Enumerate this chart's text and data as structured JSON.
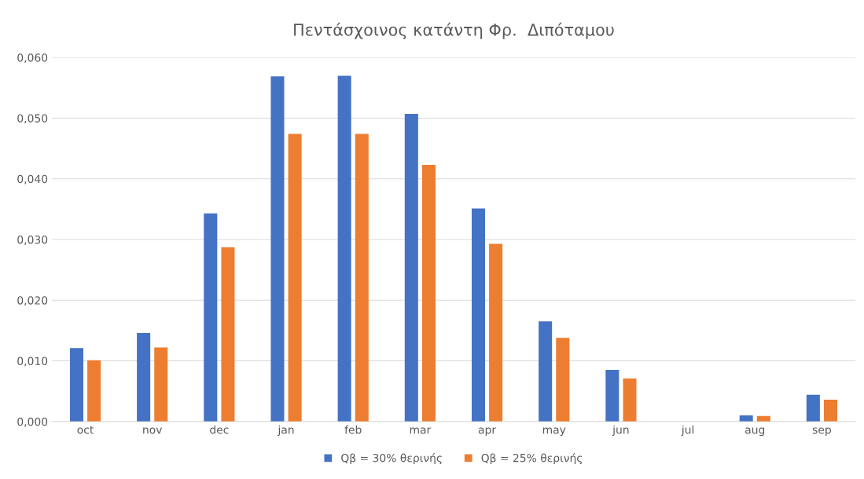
{
  "chart_data": {
    "type": "bar",
    "title": "Πεντάσχοινος κατάντη Φρ.  Διπόταμου",
    "categories": [
      "oct",
      "nov",
      "dec",
      "jan",
      "feb",
      "mar",
      "apr",
      "may",
      "jun",
      "jul",
      "aug",
      "sep"
    ],
    "series": [
      {
        "name": "Qβ = 30% θερινής",
        "color": "#4472c4",
        "values": [
          0.0121,
          0.0146,
          0.0343,
          0.0569,
          0.057,
          0.0507,
          0.0351,
          0.0165,
          0.0085,
          0,
          0.001,
          0.0044
        ]
      },
      {
        "name": "Qβ = 25% θερινής",
        "color": "#ed7d31",
        "values": [
          0.0101,
          0.0122,
          0.0287,
          0.0474,
          0.0474,
          0.0423,
          0.0293,
          0.0138,
          0.0071,
          0,
          0.0009,
          0.0036
        ]
      }
    ],
    "ylim": [
      0,
      0.06
    ],
    "yticks": [
      {
        "value": 0,
        "label": "0,000"
      },
      {
        "value": 0.01,
        "label": "0,010"
      },
      {
        "value": 0.02,
        "label": "0,020"
      },
      {
        "value": 0.03,
        "label": "0,030"
      },
      {
        "value": 0.04,
        "label": "0,040"
      },
      {
        "value": 0.05,
        "label": "0,050"
      },
      {
        "value": 0.06,
        "label": "0,060"
      }
    ],
    "grid": "y",
    "legend": "bottom"
  }
}
